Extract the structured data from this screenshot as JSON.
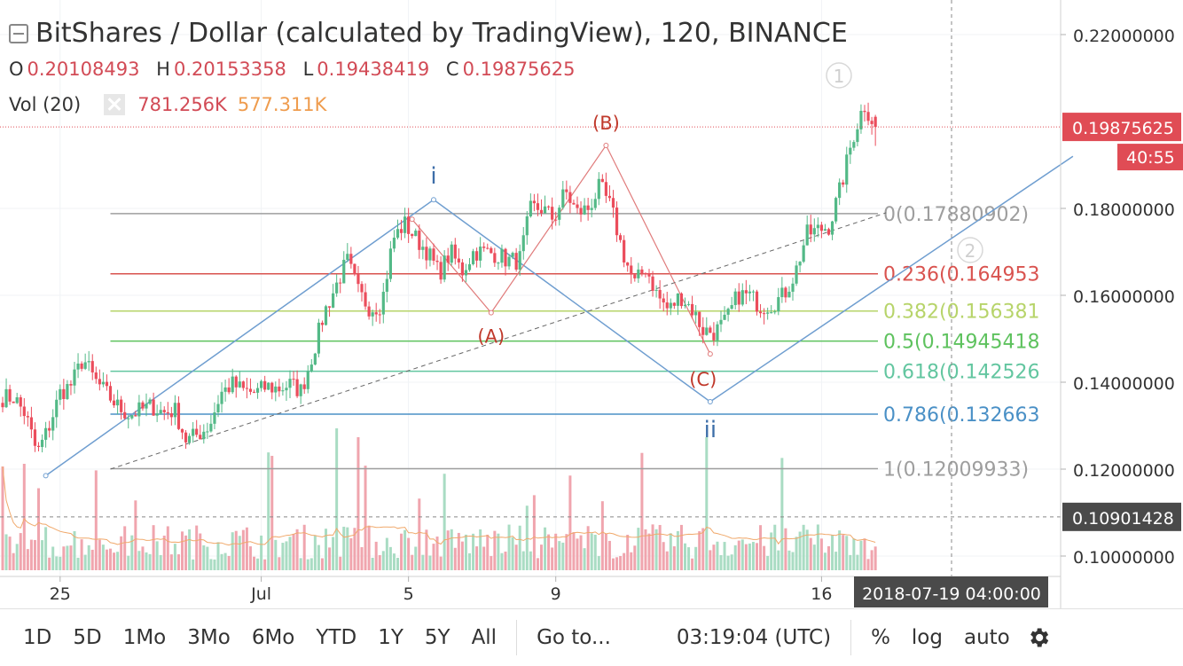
{
  "header": {
    "title": "BitShares / Dollar (calculated by TradingView), 120, BINANCE",
    "ohlc": [
      {
        "key": "O",
        "value": "0.20108493"
      },
      {
        "key": "H",
        "value": "0.20153358"
      },
      {
        "key": "L",
        "value": "0.19438419"
      },
      {
        "key": "C",
        "value": "0.19875625"
      }
    ],
    "volume_label": "Vol (20)",
    "volume_value": "781.256K",
    "volume_ma": "577.311K"
  },
  "toolbar": {
    "ranges": [
      "1D",
      "5D",
      "1Mo",
      "3Mo",
      "6Mo",
      "YTD",
      "1Y",
      "5Y",
      "All"
    ],
    "goto": "Go to...",
    "clock": "03:19:04 (UTC)",
    "percent": "%",
    "log": "log",
    "auto": "auto"
  },
  "colors": {
    "up": "#53b987",
    "down": "#eb4d5c",
    "vol_up": "#a9dcc3",
    "vol_down": "#f0a5ae",
    "wave_blue": "#6f9ed0",
    "wave_red": "#e07b7b",
    "price_label_bg": "#e04c55",
    "crosshair_label_bg": "#4a4a4a"
  },
  "chart_data": {
    "type": "candlestick",
    "symbol": "BitShares / Dollar",
    "interval": "120",
    "exchange": "BINANCE",
    "y_range": [
      0.095,
      0.228
    ],
    "y_ticks": [
      "0.22000000",
      "0.18000000",
      "0.16000000",
      "0.14000000",
      "0.12000000",
      "0.10000000"
    ],
    "y_tick_values": [
      0.22,
      0.18,
      0.16,
      0.14,
      0.12,
      0.1
    ],
    "x_ticks": [
      "25",
      "Jul",
      "5",
      "9",
      "16"
    ],
    "x_tick_bars": [
      16,
      72,
      113,
      154,
      228
    ],
    "last_price": "0.19875625",
    "countdown": "40:55",
    "crosshair_price": "0.10901428",
    "crosshair_time": "2018-07-19 04:00:00",
    "fib_levels": [
      {
        "label": "0(0.17880902)",
        "price": 0.17880902,
        "color": "#9e9e9e"
      },
      {
        "label": "0.236(0.164953",
        "price": 0.164953,
        "color": "#d9534f"
      },
      {
        "label": "0.382(0.156381",
        "price": 0.156381,
        "color": "#b7d46a"
      },
      {
        "label": "0.5(0.14945418",
        "price": 0.14945418,
        "color": "#5ec25e"
      },
      {
        "label": "0.618(0.142526",
        "price": 0.142526,
        "color": "#63c6a0"
      },
      {
        "label": "0.786(0.132663",
        "price": 0.132663,
        "color": "#4a90c6"
      },
      {
        "label": "1(0.12009933)",
        "price": 0.12009933,
        "color": "#9e9e9e"
      }
    ],
    "wave_labels": {
      "i": "i",
      "ii": "ii",
      "A": "(A)",
      "B": "(B)",
      "C": "(C)",
      "one": "1",
      "two": "2"
    },
    "wave_impulse_points": [
      [
        12,
        0.1185
      ],
      [
        120,
        0.182
      ],
      [
        197,
        0.1355
      ],
      [
        298,
        0.192
      ]
    ],
    "wave_abc_points": [
      [
        114,
        0.1775
      ],
      [
        136,
        0.156
      ],
      [
        168,
        0.1945
      ],
      [
        197,
        0.1465
      ]
    ],
    "trend_dashed": [
      [
        30,
        0.12
      ],
      [
        246,
        0.179
      ]
    ],
    "anchors": [
      {
        "c": 0.1365,
        "lo": 0.125,
        "hi": 0.14
      },
      {
        "c": 0.1365
      },
      {
        "c": 0.1325
      },
      {
        "c": 0.1235,
        "lo": 0.12
      },
      {
        "c": 0.1295
      },
      {
        "c": 0.1375
      },
      {
        "c": 0.1395
      },
      {
        "c": 0.1455
      },
      {
        "c": 0.1405
      },
      {
        "c": 0.1375
      },
      {
        "c": 0.1345
      },
      {
        "c": 0.1325
      },
      {
        "c": 0.1335
      },
      {
        "c": 0.1345
      },
      {
        "c": 0.133
      },
      {
        "c": 0.1335
      },
      {
        "c": 0.1265,
        "lo": 0.122
      },
      {
        "c": 0.128
      },
      {
        "c": 0.13
      },
      {
        "c": 0.1375
      },
      {
        "c": 0.1395
      },
      {
        "c": 0.138
      },
      {
        "c": 0.1375
      },
      {
        "c": 0.139
      },
      {
        "c": 0.1385
      },
      {
        "c": 0.1395
      },
      {
        "c": 0.138
      },
      {
        "c": 0.1465
      },
      {
        "c": 0.156
      },
      {
        "c": 0.162
      },
      {
        "c": 0.168
      },
      {
        "c": 0.1605
      },
      {
        "c": 0.157
      },
      {
        "c": 0.158
      },
      {
        "c": 0.173
      },
      {
        "c": 0.1765
      },
      {
        "c": 0.173
      },
      {
        "c": 0.17
      },
      {
        "c": 0.165
      },
      {
        "c": 0.17
      },
      {
        "c": 0.1655
      },
      {
        "c": 0.17
      },
      {
        "c": 0.17
      },
      {
        "c": 0.1695
      },
      {
        "c": 0.168
      },
      {
        "c": 0.168
      },
      {
        "c": 0.18
      },
      {
        "c": 0.18
      },
      {
        "c": 0.1775
      },
      {
        "c": 0.184
      },
      {
        "c": 0.179
      },
      {
        "c": 0.18
      },
      {
        "c": 0.185
      },
      {
        "c": 0.18
      },
      {
        "c": 0.17
      },
      {
        "c": 0.1625
      },
      {
        "c": 0.1665
      },
      {
        "c": 0.16
      },
      {
        "c": 0.1565
      },
      {
        "c": 0.16
      },
      {
        "c": 0.157
      },
      {
        "c": 0.152
      },
      {
        "c": 0.1515
      },
      {
        "c": 0.154
      },
      {
        "c": 0.16
      },
      {
        "c": 0.16
      },
      {
        "c": 0.1575
      },
      {
        "c": 0.158
      },
      {
        "c": 0.16
      },
      {
        "c": 0.165
      },
      {
        "c": 0.174
      },
      {
        "c": 0.175
      },
      {
        "c": 0.176
      },
      {
        "c": 0.185
      },
      {
        "c": 0.196
      },
      {
        "c": 0.204
      },
      {
        "c": 0.1988
      }
    ]
  }
}
